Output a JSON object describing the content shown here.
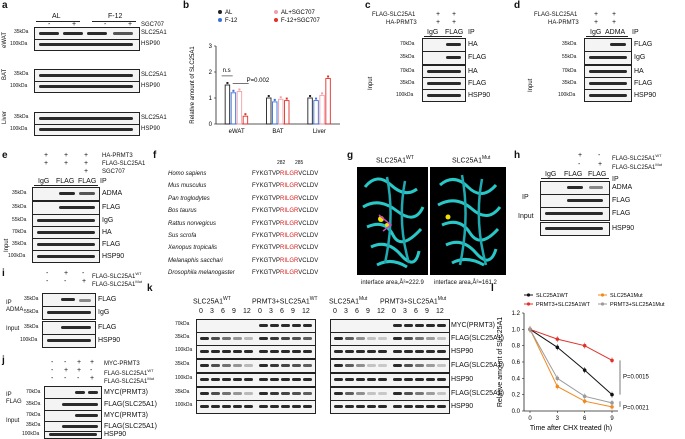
{
  "panels": {
    "a": {
      "label": "a",
      "groups": [
        "AL",
        "F-12"
      ],
      "sgc": "SGC707",
      "signs": [
        "-",
        "+",
        "-",
        "+"
      ],
      "tissues": [
        "eWAT",
        "BAT",
        "Liver"
      ],
      "rows": [
        "SLC25A1",
        "HSP90",
        "SLC25A1",
        "HSP90",
        "SLC25A1",
        "HSP90"
      ],
      "kda": [
        "35kDa",
        "100kDa",
        "35kDa",
        "100kDa",
        "35kDa",
        "100kDa"
      ]
    },
    "b": {
      "label": "b",
      "ylabel": "Relative amount of SLC25A1",
      "legend": [
        "AL",
        "F-12",
        "AL+SGC707",
        "F-12+SGC707"
      ],
      "ns": "n.s",
      "p": "P=0.002",
      "yticks": [
        "0",
        "1",
        "2",
        "3"
      ],
      "xcats": [
        "eWAT",
        "BAT",
        "Liver"
      ]
    },
    "c": {
      "label": "c",
      "rows_top": [
        "FLAG-SLC25A1",
        "HA-PRMT3"
      ],
      "signs": [
        "+",
        "+"
      ],
      "ip": [
        "IgG",
        "FLAG",
        "IP"
      ],
      "blots": [
        "HA",
        "FLAG",
        "HA",
        "FLAG",
        "HSP90"
      ],
      "kda": [
        "70kDa",
        "35kDa",
        "70kDa",
        "35kDa",
        "100kDa"
      ],
      "ip_side": "IP",
      "input_side": "Input"
    },
    "d": {
      "label": "d",
      "rows_top": [
        "FLAG-SLC25A1",
        "HA-PRMT3"
      ],
      "signs": [
        "+",
        "+"
      ],
      "ip": [
        "IgG",
        "ADMA",
        "IP"
      ],
      "blots": [
        "FLAG",
        "IgG",
        "HA",
        "FLAG",
        "HSP90"
      ],
      "kda": [
        "35kDa",
        "55kDa",
        "70kDa",
        "35kDa",
        "100kDa"
      ],
      "ip_side": "IP",
      "input_side": "Input"
    },
    "e": {
      "label": "e",
      "rows_top": [
        "HA-PRMT3",
        "FLAG-SLC25A1",
        "SGC707"
      ],
      "signs": [
        [
          "+",
          "+",
          "+"
        ],
        [
          "+",
          "+",
          "+"
        ],
        [
          "",
          "",
          "+"
        ]
      ],
      "ip": [
        "IgG",
        "FLAG",
        "FLAG",
        "IP"
      ],
      "blots": [
        "ADMA",
        "FLAG",
        "IgG",
        "HA",
        "FLAG",
        "HSP90"
      ],
      "kda": [
        "35kDa",
        "35kDa",
        "55kDa",
        "70kDa",
        "35kDa",
        "100kDa"
      ],
      "ip_side": "IP",
      "input_side": "Input"
    },
    "f": {
      "label": "f",
      "pos": [
        "282",
        "285"
      ],
      "species": [
        "Homo sapiens",
        "Mus musculus",
        "Pan troglodytes",
        "Bos taurus",
        "Rattus norvegicus",
        "Sus scrofa",
        "Xenopus tropicalis",
        "Melanaphis sacchari",
        "Drosophila melanogaster"
      ],
      "pre": "FYKGTVP",
      "mid": "RILGR",
      "post": "VCLDV"
    },
    "g": {
      "label": "g",
      "wt": "SLC25A1WT",
      "mut": "SLC25A1Mut",
      "wt_area": "interface area,Å²=222.9",
      "mut_area": "interface area,Å²=161.2"
    },
    "h": {
      "label": "h",
      "rows_top": [
        "FLAG-SLC25A1WT",
        "FLAG-SLC25A1Mut"
      ],
      "signs": [
        [
          "+",
          "-"
        ],
        [
          "-",
          "+"
        ]
      ],
      "ip": [
        "IgG",
        "FLAG",
        "FLAG",
        "IP"
      ],
      "blots": [
        "ADMA",
        "FLAG",
        "FLAG",
        "HSP90"
      ],
      "ip_side": "IP",
      "input_side": "Input"
    },
    "i": {
      "label": "i",
      "rows_top": [
        "FLAG-SLC25A1WT",
        "FLAG-SLC25A1Mut"
      ],
      "signs": [
        [
          "-",
          "+",
          "-"
        ],
        [
          "-",
          "-",
          "+"
        ]
      ],
      "blots": [
        "FLAG",
        "IgG",
        "FLAG",
        "HSP90"
      ],
      "kda": [
        "35kDa",
        "55kDa",
        "35kDa",
        "100kDa"
      ],
      "ip_side": "IP ADMA",
      "input_side": "Input"
    },
    "j": {
      "label": "j",
      "rows_top": [
        "MYC-PRMT3",
        "FLAG-SLC25A1WT",
        "FLAG-SLC25A1Mut"
      ],
      "signs": [
        [
          "-",
          "-",
          "+",
          "+"
        ],
        [
          "-",
          "+",
          "+",
          "-"
        ],
        [
          "-",
          "-",
          "-",
          "+"
        ]
      ],
      "blots": [
        "MYC(PRMT3)",
        "FLAG(SLC25A1)",
        "MYC(PRMT3)",
        "FLAG(SLC25A1)",
        "HSP90"
      ],
      "kda": [
        "70kDa",
        "35kDa",
        "70kDa",
        "35kDa",
        "100kDa"
      ],
      "ip_side": "IP FLAG",
      "input_side": "Input"
    },
    "k": {
      "label": "k",
      "titles": [
        "SLC25A1WT",
        "PRMT3+SLC25A1WT",
        "SLC25A1Mut",
        "PRMT3+SLC25A1Mut"
      ],
      "times": [
        "0",
        "3",
        "6",
        "9",
        "12"
      ],
      "rows": [
        "MYC(PRMT3)",
        "FLAG(SLC25A1)",
        "HSP90",
        "FLAG(SLC25A1)",
        "HSP90",
        "FLAG(SLC25A1)",
        "HSP90"
      ],
      "kda": [
        "70kDa",
        "35kDa",
        "100kDa",
        "35kDa",
        "100kDa",
        "35kDa",
        "100kDa"
      ]
    },
    "l": {
      "label": "l",
      "ylabel": "Relative amount of SLC25A1",
      "xlabel": "Time after CHX treated (h)",
      "legend": [
        "SLC25A1WT",
        "SLC25A1Mut",
        "PRMT3+SLC25A1WT",
        "PRMT3+SLC25A1Mut"
      ],
      "p1": "P=0.0015",
      "p2": "P=0.0021",
      "yticks": [
        "0.0",
        "0.2",
        "0.4",
        "0.6",
        "0.8",
        "1.0",
        "1.2"
      ],
      "xticks": [
        "0",
        "3",
        "6",
        "9"
      ]
    }
  },
  "chart_data": [
    {
      "type": "bar",
      "title": "",
      "ylabel": "Relative amount of SLC25A1",
      "categories": [
        "eWAT",
        "BAT",
        "Liver"
      ],
      "ylim": [
        0,
        3
      ],
      "series": [
        {
          "name": "AL",
          "values": [
            1.5,
            1.0,
            1.0
          ]
        },
        {
          "name": "F-12",
          "values": [
            1.2,
            0.85,
            0.9
          ]
        },
        {
          "name": "AL+SGC707",
          "values": [
            1.25,
            0.95,
            1.1
          ]
        },
        {
          "name": "F-12+SGC707",
          "values": [
            0.3,
            0.9,
            1.75
          ]
        }
      ],
      "colors": [
        "#222222",
        "#3a6fd8",
        "#f0a0a8",
        "#e0302a"
      ]
    },
    {
      "type": "line",
      "xlabel": "Time after CHX treated (h)",
      "ylabel": "Relative amount of SLC25A1",
      "ylim": [
        0,
        1.2
      ],
      "x": [
        0,
        3,
        6,
        9
      ],
      "series": [
        {
          "name": "SLC25A1WT",
          "values": [
            1.0,
            0.78,
            0.5,
            0.2
          ],
          "color": "#111111"
        },
        {
          "name": "SLC25A1Mut",
          "values": [
            1.0,
            0.3,
            0.12,
            0.05
          ],
          "color": "#f08a1e"
        },
        {
          "name": "PRMT3+SLC25A1WT",
          "values": [
            1.0,
            0.88,
            0.8,
            0.62
          ],
          "color": "#e0302a"
        },
        {
          "name": "PRMT3+SLC25A1Mut",
          "values": [
            1.0,
            0.4,
            0.18,
            0.1
          ],
          "color": "#9a9a9a"
        }
      ]
    }
  ]
}
